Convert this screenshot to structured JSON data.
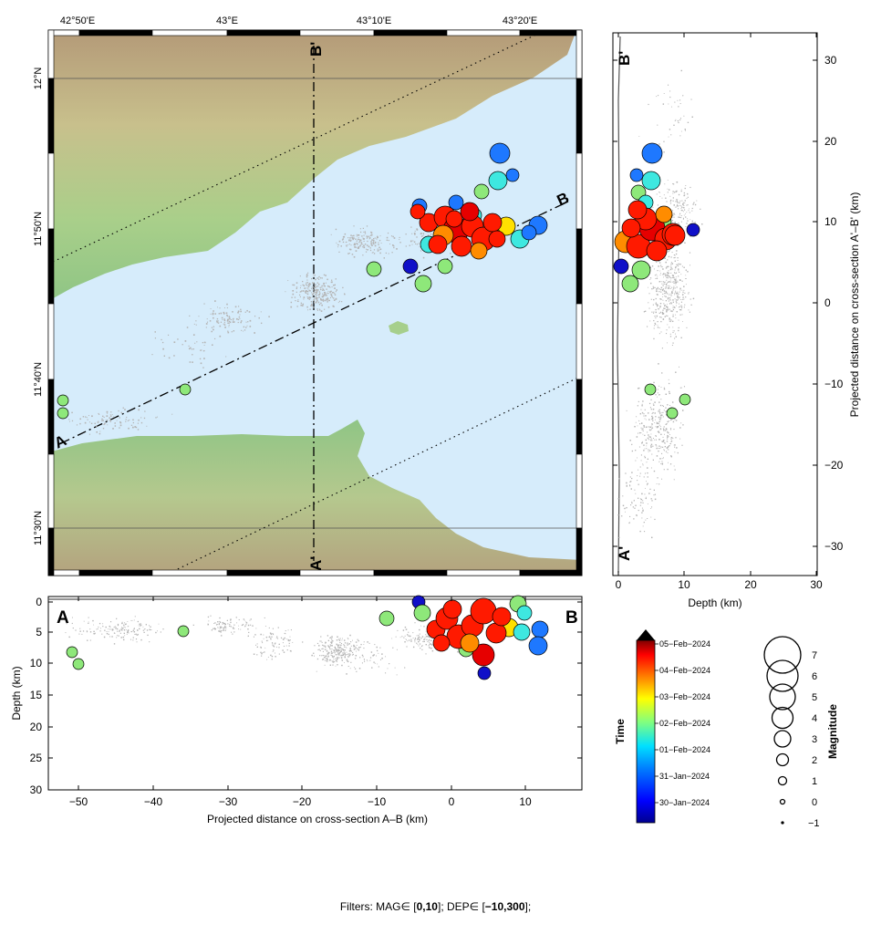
{
  "map": {
    "lon_ticks": [
      "42°50'E",
      "43°E",
      "43°10'E",
      "43°20'E"
    ],
    "lat_ticks": [
      "12°N",
      "11°50'N",
      "11°40'N",
      "11°30'N"
    ],
    "section_labels": {
      "a": "A",
      "b": "B",
      "a_prime": "A'",
      "b_prime": "B'"
    }
  },
  "cross_section_ab": {
    "xlabel": "Projected distance on cross-section A–B (km)",
    "ylabel": "Depth (km)",
    "xticks": [
      "−50",
      "−40",
      "−30",
      "−20",
      "−10",
      "0",
      "10"
    ],
    "yticks": [
      "0",
      "5",
      "10",
      "15",
      "20",
      "25",
      "30"
    ],
    "end_labels": {
      "left": "A",
      "right": "B"
    }
  },
  "cross_section_apbp": {
    "xlabel": "Depth (km)",
    "ylabel": "Projected distance on cross-section A'–B' (km)",
    "xticks": [
      "0",
      "10",
      "20",
      "30"
    ],
    "yticks": [
      "30",
      "20",
      "10",
      "0",
      "−10",
      "−20",
      "−30"
    ],
    "end_labels": {
      "top": "B'",
      "bottom": "A'"
    }
  },
  "time_colorbar": {
    "title": "Time",
    "labels": [
      "05−Feb−2024",
      "04−Feb−2024",
      "03−Feb−2024",
      "02−Feb−2024",
      "01−Feb−2024",
      "31−Jan−2024",
      "30−Jan−2024"
    ]
  },
  "magnitude_legend": {
    "title": "Magnitude",
    "labels": [
      "7",
      "6",
      "5",
      "4",
      "3",
      "2",
      "1",
      "0",
      "−1"
    ]
  },
  "filters": {
    "prefix": "Filters:  MAG∈ [",
    "mag_range": "0,10",
    "middle": "]; DEP∈ [",
    "dep_range": "−10,300",
    "suffix": "];"
  },
  "colors": {
    "sea": "#d6ecfb",
    "background_seismicity": "#b4b4b4"
  }
}
